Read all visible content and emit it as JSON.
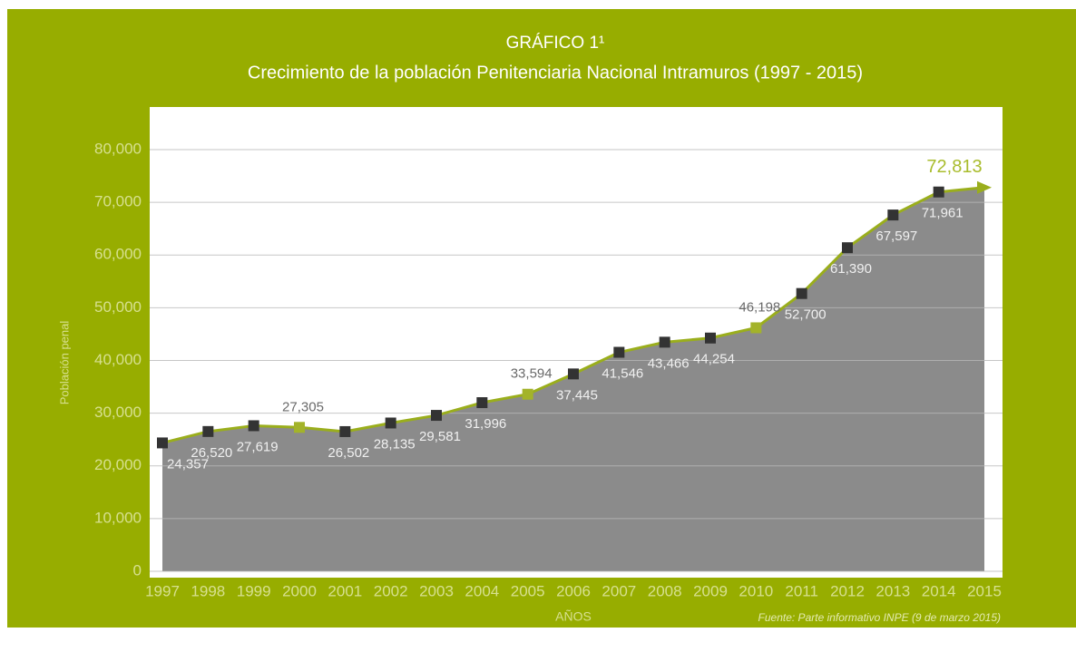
{
  "chart_data": {
    "type": "area",
    "title": "GRÁFICO 1¹",
    "subtitle": "Crecimiento de la población Penitenciaria Nacional Intramuros (1997 - 2015)",
    "y_label": "Población penal",
    "x_label": "AÑOS",
    "source": "Fuente: Parte informativo INPE (9 de marzo 2015)",
    "categories": [
      "1997",
      "1998",
      "1999",
      "2000",
      "2001",
      "2002",
      "2003",
      "2004",
      "2005",
      "2006",
      "2007",
      "2008",
      "2009",
      "2010",
      "2011",
      "2012",
      "2013",
      "2014",
      "2015"
    ],
    "series": [
      {
        "name": "Población penal",
        "color": "#9aae1c",
        "fill": "#8b8b8b",
        "values": [
          24357,
          26520,
          27619,
          27305,
          26502,
          28135,
          29581,
          31996,
          33594,
          37445,
          41546,
          43466,
          44254,
          46198,
          52700,
          61390,
          67597,
          71961,
          72813
        ],
        "value_labels": [
          "24,357",
          "26,520",
          "27,619",
          "27,305",
          "26,502",
          "28,135",
          "29,581",
          "31,996",
          "33,594",
          "37,445",
          "41,546",
          "43,466",
          "44,254",
          "46,198",
          "52,700",
          "61,390",
          "67,597",
          "71,961",
          "72,813"
        ],
        "marker_colors": [
          "#333333",
          "#333333",
          "#333333",
          "#a3b32a",
          "#333333",
          "#333333",
          "#333333",
          "#333333",
          "#a3b32a",
          "#333333",
          "#333333",
          "#333333",
          "#333333",
          "#a3b32a",
          "#333333",
          "#333333",
          "#333333",
          "#333333",
          "#9aae1c"
        ]
      }
    ],
    "ylim": [
      0,
      80000
    ],
    "yticks": [
      0,
      {
        "value": 10000,
        "label": "10,000"
      },
      {
        "value": 20000,
        "label": "20,000"
      },
      {
        "value": 30000,
        "label": "30,000"
      },
      {
        "value": 40000,
        "label": "40,000"
      },
      {
        "value": 50000,
        "label": "50,000"
      },
      {
        "value": 60000,
        "label": "60,000"
      },
      {
        "value": 70000,
        "label": "70,000"
      },
      {
        "value": 80000,
        "label": "80,000"
      }
    ],
    "grid": true
  }
}
